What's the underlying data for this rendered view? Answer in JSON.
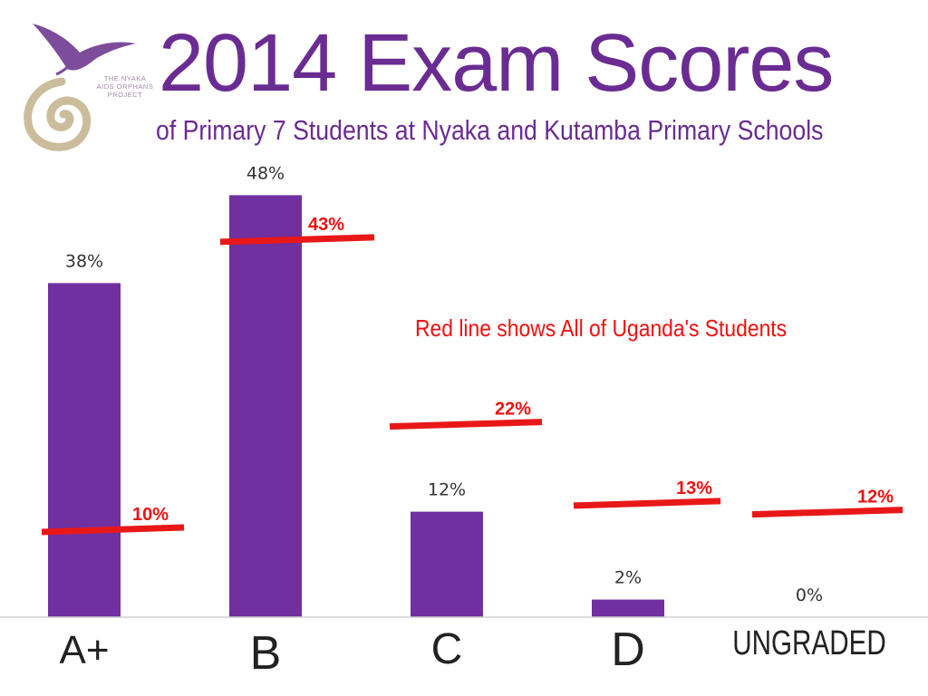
{
  "logo": {
    "lines": [
      "THE NYAKA",
      "AIDS ORPHANS",
      "PROJECT"
    ]
  },
  "title": "2014 Exam Scores",
  "subtitle": "of Primary 7 Students at Nyaka and Kutamba Primary Schools",
  "note": "Red line shows All of Uganda's Students",
  "colors": {
    "bar": "#7030a0",
    "title": "#6a2c92",
    "reference": "#e81818",
    "logo_gold": "#cbbd9c"
  },
  "chart_data": {
    "type": "bar",
    "categories": [
      "A+",
      "B",
      "C",
      "D",
      "UNGRADED"
    ],
    "series": [
      {
        "name": "",
        "values": [
          38,
          48,
          12,
          2,
          0
        ],
        "labels": [
          "38%",
          "48%",
          "12%",
          "2%",
          "0%"
        ]
      },
      {
        "name": "All of Uganda's Students",
        "values": [
          10,
          43,
          22,
          13,
          12
        ],
        "labels": [
          "10%",
          "43%",
          "22%",
          "13%",
          "12%"
        ]
      }
    ],
    "title": "2014 Exam Scores",
    "subtitle": "of Primary 7 Students at Nyaka and Kutamba Primary Schools",
    "annotation": "Red line shows All of Uganda's Students",
    "xlabel": "",
    "ylabel": "",
    "ylim": [
      0,
      48
    ],
    "grid": false,
    "legend": "none"
  }
}
